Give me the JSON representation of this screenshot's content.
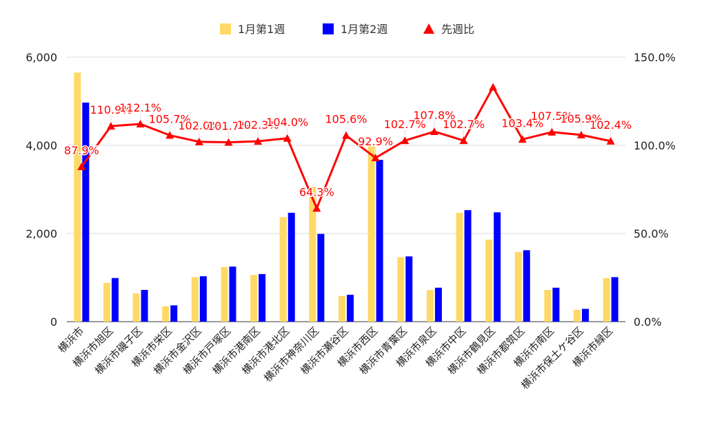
{
  "chart_data": {
    "type": "bar",
    "title": "",
    "categories": [
      "横浜市",
      "横浜市旭区",
      "横浜市磯子区",
      "横浜市栄区",
      "横浜市金沢区",
      "横浜市戸塚区",
      "横浜市港南区",
      "横浜市港北区",
      "横浜市神奈川区",
      "横浜市瀬谷区",
      "横浜市西区",
      "横浜市青葉区",
      "横浜市泉区",
      "横浜市中区",
      "横浜市鶴見区",
      "横浜市都筑区",
      "横浜市南区",
      "横浜市保土ケ谷区",
      "横浜市緑区"
    ],
    "series": [
      {
        "name": "1月第1週",
        "type": "bar",
        "axis": "left",
        "color": "#ffd966",
        "values": [
          5650,
          880,
          640,
          350,
          1010,
          1240,
          1060,
          2370,
          3060,
          580,
          3980,
          1460,
          720,
          2470,
          1860,
          1580,
          720,
          270,
          990
        ]
      },
      {
        "name": "1月第2週",
        "type": "bar",
        "axis": "left",
        "color": "#0000ff",
        "values": [
          4970,
          990,
          720,
          370,
          1030,
          1250,
          1080,
          2470,
          1990,
          610,
          3670,
          1480,
          770,
          2530,
          2480,
          1620,
          770,
          290,
          1010
        ]
      },
      {
        "name": "先週比",
        "type": "line",
        "axis": "right",
        "color": "#ff0000",
        "marker": "triangle",
        "values": [
          87.9,
          110.9,
          112.1,
          105.7,
          102.0,
          101.7,
          102.3,
          104.0,
          64.3,
          105.6,
          92.9,
          102.7,
          107.8,
          102.7,
          133.0,
          103.4,
          107.5,
          105.9,
          102.4
        ],
        "labels": [
          "87.9%",
          "110.9%",
          "112.1%",
          "105.7%",
          "102.0%",
          "101.7%",
          "102.3%",
          "104.0%",
          "64.3%",
          "105.6%",
          "92.9%",
          "102.7%",
          "107.8%",
          "102.7%",
          "",
          "103.4%",
          "107.5%",
          "105.9%",
          "102.4%"
        ]
      }
    ],
    "y_left": {
      "ticks": [
        "0",
        "2,000",
        "4,000",
        "6,000"
      ],
      "ylim": [
        0,
        6000
      ]
    },
    "y_right": {
      "ticks": [
        "0.0%",
        "50.0%",
        "100.0%",
        "150.0%"
      ],
      "ylim": [
        0,
        150
      ]
    },
    "grid": "horizontal",
    "legend_position": "top-center"
  }
}
